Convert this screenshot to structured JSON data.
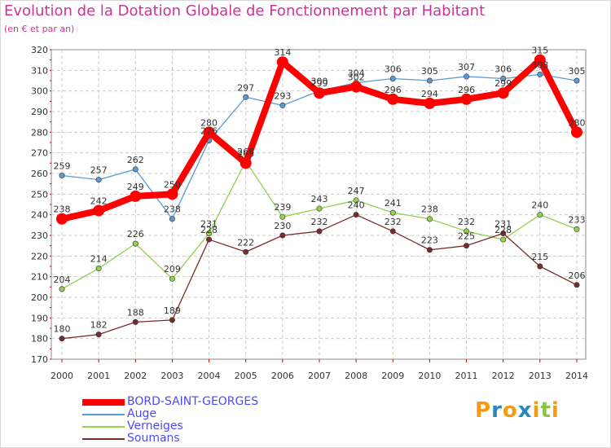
{
  "title": "Evolution de la Dotation Globale de Fonctionnement par Habitant",
  "subtitle": "(en € et par an)",
  "logo": {
    "text": "Proxiti",
    "letters": [
      "P",
      "r",
      "o",
      "x",
      "i",
      "t",
      "i"
    ],
    "colors": [
      "#f39c12",
      "#2e86c1",
      "#f39c12",
      "#2e86c1",
      "#f39c12",
      "#8bc34a",
      "#f39c12"
    ]
  },
  "colors": {
    "title": "#cc3399",
    "legend_text": "#4a4aff",
    "grid": "#cccccc",
    "plot_border": "#888888",
    "tick_marks": "#cc0000"
  },
  "chart_data": {
    "type": "line",
    "title": "Evolution de la Dotation Globale de Fonctionnement par Habitant",
    "subtitle": "(en € et par an)",
    "x": [
      2000,
      2001,
      2002,
      2003,
      2004,
      2005,
      2006,
      2007,
      2008,
      2009,
      2010,
      2011,
      2012,
      2013,
      2014
    ],
    "ylim": [
      170,
      320
    ],
    "yticks": [
      170,
      180,
      190,
      200,
      210,
      220,
      230,
      240,
      250,
      260,
      270,
      280,
      290,
      300,
      310,
      320
    ],
    "grid": true,
    "legend_position": "bottom-left",
    "series": [
      {
        "name": "BORD-SAINT-GEORGES",
        "color": "#ff0000",
        "values": [
          238,
          242,
          249,
          250,
          280,
          265,
          314,
          299,
          302,
          296,
          294,
          296,
          299,
          315,
          280
        ],
        "labels": [
          "238",
          "242",
          "249",
          "250",
          "280",
          "265",
          "314",
          "299",
          "302",
          "296",
          "294",
          "296",
          "299",
          "315",
          "280"
        ]
      },
      {
        "name": "Auge",
        "color": "#5b9bd5",
        "values": [
          259,
          257,
          262,
          238,
          276,
          297,
          293,
          300,
          304,
          306,
          305,
          307,
          306,
          308,
          305
        ],
        "labels": [
          "259",
          "257",
          "262",
          "238",
          "276",
          "297",
          "293",
          "300",
          "304",
          "306",
          "305",
          "307",
          "306",
          "308",
          "305"
        ]
      },
      {
        "name": "Verneiges",
        "color": "#92d050",
        "values": [
          204,
          214,
          226,
          209,
          231,
          266,
          239,
          243,
          247,
          241,
          238,
          232,
          228,
          240,
          233
        ],
        "labels": [
          "204",
          "214",
          "226",
          "209",
          "231",
          "266",
          "239",
          "243",
          "247",
          "241",
          "238",
          "232",
          "228",
          "240",
          "233"
        ]
      },
      {
        "name": "Soumans",
        "color": "#7b2b2b",
        "values": [
          180,
          182,
          188,
          189,
          228,
          222,
          230,
          232,
          240,
          232,
          223,
          225,
          231,
          215,
          206
        ],
        "labels": [
          "180",
          "182",
          "188",
          "189",
          "228",
          "222",
          "230",
          "232",
          "240",
          "232",
          "223",
          "225",
          "231",
          "215",
          "206"
        ]
      }
    ]
  }
}
